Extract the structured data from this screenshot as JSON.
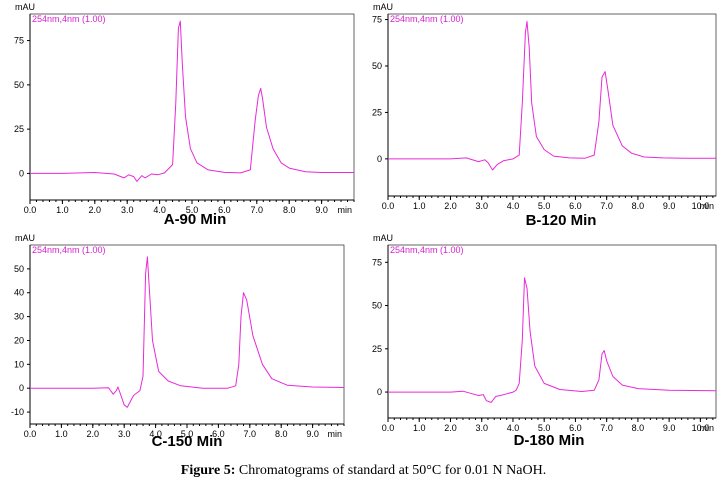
{
  "colors": {
    "trace": "#e82ad8",
    "legend": "#d81fd0",
    "axis": "#000000"
  },
  "caption": {
    "label": "Figure 5:",
    "text": "Chromatograms of standard at 50°C for 0.01 N NaOH."
  },
  "chart_data": [
    {
      "type": "line",
      "id": "A",
      "title": "A-90 Min",
      "legend": "254nm,4nm (1.00)",
      "ylabel": "mAU",
      "xlabel": "min",
      "xlim": [
        0,
        10.0
      ],
      "ylim": [
        -15,
        90
      ],
      "yticks": [
        0,
        25,
        50,
        75
      ],
      "xticks": [
        "0.0",
        "1.0",
        "2.0",
        "3.0",
        "4.0",
        "5.0",
        "6.0",
        "7.0",
        "8.0",
        "9.0"
      ],
      "series": [
        {
          "name": "254nm,4nm (1.00)",
          "x": [
            0.0,
            0.5,
            1.0,
            2.0,
            2.6,
            2.9,
            3.05,
            3.2,
            3.3,
            3.45,
            3.55,
            3.75,
            3.95,
            4.15,
            4.4,
            4.5,
            4.58,
            4.64,
            4.7,
            4.8,
            4.95,
            5.15,
            5.5,
            6.0,
            6.5,
            6.8,
            6.95,
            7.05,
            7.12,
            7.18,
            7.3,
            7.5,
            7.75,
            8.0,
            8.5,
            9.0,
            10.0
          ],
          "y": [
            0,
            0,
            0,
            0.5,
            -0.3,
            -2.5,
            -0.8,
            -1.8,
            -4.5,
            -1.2,
            -2.5,
            -0.3,
            -0.7,
            0.3,
            5,
            40,
            82,
            86,
            62,
            32,
            14,
            6,
            2,
            0.6,
            0.3,
            2,
            30,
            44,
            48,
            42,
            26,
            14,
            6,
            3,
            1,
            0.5,
            0.5
          ]
        }
      ]
    },
    {
      "type": "line",
      "id": "B",
      "title": "B-120 Min",
      "legend": "254nm,4nm (1.00)",
      "ylabel": "mAU",
      "xlabel": "min",
      "xlim": [
        0,
        10.5
      ],
      "ylim": [
        -20,
        78
      ],
      "yticks": [
        0,
        25,
        50,
        75
      ],
      "xticks": [
        "0.0",
        "1.0",
        "2.0",
        "3.0",
        "4.0",
        "5.0",
        "6.0",
        "7.0",
        "8.0",
        "9.0",
        "10.0"
      ],
      "series": [
        {
          "name": "254nm,4nm (1.00)",
          "x": [
            0.0,
            1.0,
            2.0,
            2.5,
            2.9,
            3.1,
            3.2,
            3.35,
            3.5,
            3.7,
            4.0,
            4.2,
            4.3,
            4.4,
            4.45,
            4.52,
            4.6,
            4.75,
            5.0,
            5.3,
            5.8,
            6.3,
            6.6,
            6.75,
            6.85,
            6.95,
            7.05,
            7.2,
            7.5,
            7.8,
            8.2,
            8.8,
            9.5,
            10.5
          ],
          "y": [
            0,
            0,
            0,
            0.5,
            -1.5,
            -0.5,
            -2,
            -6,
            -3,
            -1,
            0,
            2,
            30,
            68,
            74,
            60,
            30,
            12,
            5,
            1.5,
            0.5,
            0.3,
            2,
            20,
            44,
            47,
            36,
            18,
            7,
            3,
            1,
            0.5,
            0.3,
            0.3
          ]
        }
      ]
    },
    {
      "type": "line",
      "id": "C",
      "title": "C-150 Min",
      "legend": "254nm,4nm (1.00)",
      "ylabel": "mAU",
      "xlabel": "min",
      "xlim": [
        0,
        10.0
      ],
      "ylim": [
        -15,
        60
      ],
      "yticks": [
        -10,
        0,
        10,
        20,
        30,
        40,
        50
      ],
      "xticks": [
        "0.0",
        "1.0",
        "2.0",
        "3.0",
        "4.0",
        "5.0",
        "6.0",
        "7.0",
        "8.0",
        "9.0"
      ],
      "series": [
        {
          "name": "254nm,4nm (1.00)",
          "x": [
            0.0,
            1.0,
            2.0,
            2.5,
            2.65,
            2.75,
            2.8,
            2.87,
            3.0,
            3.1,
            3.3,
            3.5,
            3.6,
            3.68,
            3.74,
            3.8,
            3.9,
            4.1,
            4.4,
            4.8,
            5.5,
            6.3,
            6.55,
            6.65,
            6.72,
            6.8,
            6.9,
            7.1,
            7.4,
            7.7,
            8.2,
            9.0,
            10.0
          ],
          "y": [
            0,
            0,
            0,
            0.2,
            -2.5,
            -1,
            0.5,
            -2,
            -7,
            -8,
            -3,
            -1,
            5,
            48,
            55,
            42,
            20,
            7,
            3,
            1,
            0,
            0,
            1,
            10,
            30,
            40,
            37,
            22,
            10,
            4,
            1.2,
            0.5,
            0.3
          ]
        }
      ]
    },
    {
      "type": "line",
      "id": "D",
      "title": "D-180 Min",
      "legend": "254nm,4nm (1.00)",
      "ylabel": "mAU",
      "xlabel": "min",
      "xlim": [
        0,
        10.5
      ],
      "ylim": [
        -15,
        85
      ],
      "yticks": [
        0,
        25,
        50,
        75
      ],
      "xticks": [
        "0.0",
        "1.0",
        "2.0",
        "3.0",
        "4.0",
        "5.0",
        "6.0",
        "7.0",
        "8.0",
        "9.0",
        "10.0"
      ],
      "series": [
        {
          "name": "254nm,4nm (1.00)",
          "x": [
            0.0,
            1.0,
            2.0,
            2.4,
            2.7,
            2.9,
            3.05,
            3.15,
            3.3,
            3.45,
            3.6,
            3.8,
            4.0,
            4.1,
            4.2,
            4.3,
            4.37,
            4.45,
            4.55,
            4.7,
            5.0,
            5.5,
            6.2,
            6.6,
            6.75,
            6.85,
            6.92,
            7.0,
            7.2,
            7.5,
            8.0,
            9.0,
            10.5
          ],
          "y": [
            0,
            0,
            0,
            0.5,
            -1,
            -2,
            -1.5,
            -5,
            -6,
            -2.5,
            -2,
            -1,
            0,
            1,
            5,
            30,
            66,
            60,
            35,
            15,
            5,
            1.5,
            0.3,
            1,
            7,
            22,
            24,
            18,
            9,
            4,
            2,
            1,
            0.8
          ]
        }
      ]
    }
  ]
}
